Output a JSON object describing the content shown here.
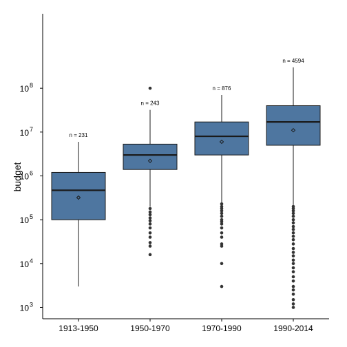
{
  "chart_data": {
    "type": "box",
    "ylabel": "budget",
    "xlabel": "",
    "yscale": "log10",
    "ylim": [
      550,
      5000000000
    ],
    "yticks": [
      {
        "value": 1000,
        "base": "10",
        "exp": "3"
      },
      {
        "value": 10000,
        "base": "10",
        "exp": "4"
      },
      {
        "value": 100000,
        "base": "10",
        "exp": "5"
      },
      {
        "value": 1000000,
        "base": "10",
        "exp": "6"
      },
      {
        "value": 10000000,
        "base": "10",
        "exp": "7"
      },
      {
        "value": 100000000,
        "base": "10",
        "exp": "8"
      }
    ],
    "colors": {
      "box_fill": "#4e76a0",
      "box_stroke": "#1a1a1a",
      "outlier": "#333333"
    },
    "grid": false,
    "categories": [
      "1913-1950",
      "1950-1970",
      "1970-1990",
      "1990-2014"
    ],
    "boxes": [
      {
        "category": "1913-1950",
        "n_label": "n = 231",
        "whisker_low": 3000,
        "q1": 100000,
        "median": 470000,
        "q3": 1200000,
        "whisker_high": 6000000,
        "mean": 320000,
        "outliers": []
      },
      {
        "category": "1950-1970",
        "n_label": "n = 243",
        "whisker_low": 200000,
        "q1": 1400000,
        "median": 3000000,
        "q3": 5300000,
        "whisker_high": 32000000,
        "mean": 2200000,
        "outliers": [
          100000000,
          180000,
          150000,
          130000,
          110000,
          95000,
          80000,
          65000,
          50000,
          40000,
          30000,
          25000,
          16000
        ]
      },
      {
        "category": "1970-1990",
        "n_label": "n = 876",
        "whisker_low": 250000,
        "q1": 3000000,
        "median": 8000000,
        "q3": 17000000,
        "whisker_high": 70000000,
        "mean": 6000000,
        "outliers": [
          230000,
          200000,
          180000,
          160000,
          140000,
          120000,
          100000,
          90000,
          80000,
          65000,
          50000,
          40000,
          28000,
          25000,
          10000,
          3000
        ]
      },
      {
        "category": "1990-2014",
        "n_label": "n = 4594",
        "whisker_low": 220000,
        "q1": 5000000,
        "median": 17000000,
        "q3": 40000000,
        "whisker_high": 300000000,
        "mean": 11000000,
        "outliers": [
          200000,
          180000,
          160000,
          140000,
          120000,
          100000,
          85000,
          70000,
          60000,
          50000,
          42000,
          35000,
          28000,
          22000,
          18000,
          15000,
          12000,
          10000,
          8000,
          6500,
          5000,
          4000,
          3000,
          2500,
          2000,
          1500,
          1200,
          1000
        ]
      }
    ]
  }
}
